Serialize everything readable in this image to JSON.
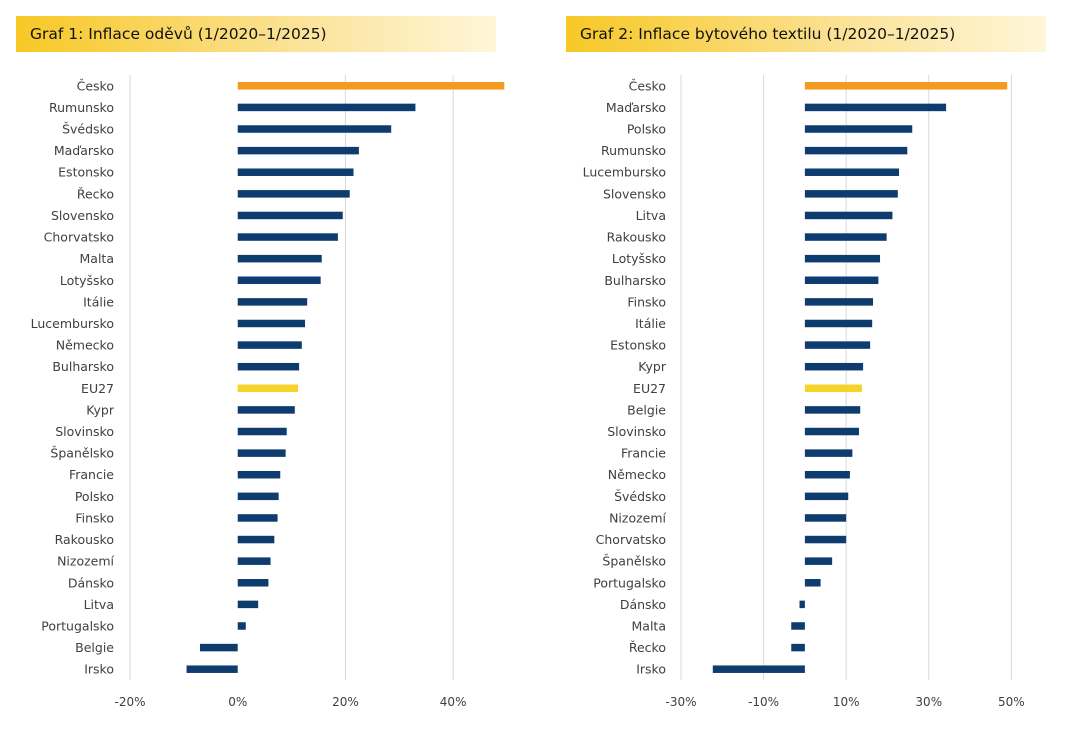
{
  "colors": {
    "highlight": "#f39a1f",
    "eu": "#f5d328",
    "default": "#0e3c6e",
    "grid": "#d9d9d9",
    "title_bg": "#f7c825"
  },
  "chart_data": [
    {
      "type": "bar",
      "orientation": "horizontal",
      "title": "Graf 1: Inflace oděvů (1/2020–1/2025)",
      "categories": [
        "Česko",
        "Rumunsko",
        "Švédsko",
        "Maďarsko",
        "Estonsko",
        "Řecko",
        "Slovensko",
        "Chorvatsko",
        "Malta",
        "Lotyšsko",
        "Itálie",
        "Lucembursko",
        "Německo",
        "Bulharsko",
        "EU27",
        "Kypr",
        "Slovinsko",
        "Španělsko",
        "Francie",
        "Polsko",
        "Finsko",
        "Rakousko",
        "Nizozemí",
        "Dánsko",
        "Litva",
        "Portugalsko",
        "Belgie",
        "Irsko"
      ],
      "values": [
        49.5,
        33,
        28.5,
        22.5,
        21.5,
        20.8,
        19.5,
        18.6,
        15.6,
        15.4,
        12.9,
        12.5,
        11.9,
        11.4,
        11.2,
        10.6,
        9.1,
        8.9,
        7.9,
        7.6,
        7.4,
        6.8,
        6.1,
        5.7,
        3.8,
        1.5,
        -7,
        -9.5
      ],
      "highlight": [
        "Česko"
      ],
      "eu_highlight": [
        "EU27"
      ],
      "xlim": [
        -20,
        50
      ],
      "xticks": [
        -20,
        0,
        20,
        40
      ],
      "tick_labels": [
        "-20%",
        "0%",
        "20%",
        "40%"
      ],
      "grid": "vertical"
    },
    {
      "type": "bar",
      "orientation": "horizontal",
      "title": "Graf 2: Inflace bytového textilu (1/2020–1/2025)",
      "categories": [
        "Česko",
        "Maďarsko",
        "Polsko",
        "Rumunsko",
        "Lucembursko",
        "Slovensko",
        "Litva",
        "Rakousko",
        "Lotyšsko",
        "Bulharsko",
        "Finsko",
        "Itálie",
        "Estonsko",
        "Kypr",
        "EU27",
        "Belgie",
        "Slovinsko",
        "Francie",
        "Německo",
        "Švédsko",
        "Nizozemí",
        "Chorvatsko",
        "Španělsko",
        "Portugalsko",
        "Dánsko",
        "Malta",
        "Řecko",
        "Irsko"
      ],
      "values": [
        49,
        34.2,
        26,
        24.8,
        22.8,
        22.5,
        21.2,
        19.8,
        18.2,
        17.8,
        16.5,
        16.3,
        15.8,
        14.1,
        13.8,
        13.4,
        13.1,
        11.5,
        10.9,
        10.5,
        10.0,
        10.0,
        6.6,
        3.8,
        -1.3,
        -3.3,
        -3.3,
        -22.3
      ],
      "highlight": [
        "Česko"
      ],
      "eu_highlight": [
        "EU27"
      ],
      "xlim": [
        -30,
        55
      ],
      "xticks": [
        -30,
        -10,
        10,
        30,
        50
      ],
      "tick_labels": [
        "-30%",
        "-10%",
        "10%",
        "30%",
        "50%"
      ],
      "grid": "vertical"
    }
  ]
}
